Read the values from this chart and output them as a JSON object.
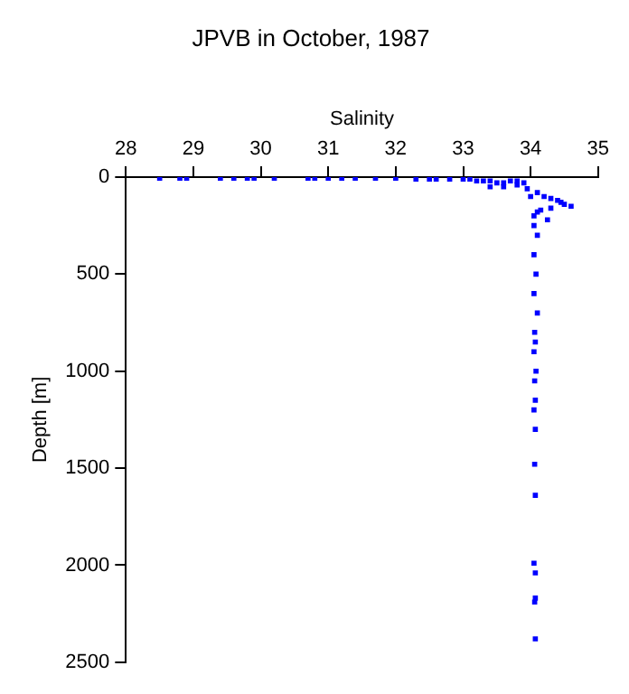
{
  "chart_data": {
    "type": "scatter",
    "title": "JPVB in October, 1987",
    "xlabel": "Salinity",
    "ylabel": "Depth [m]",
    "marker": "square",
    "grid": false,
    "legend": false,
    "xlim": [
      28,
      35
    ],
    "xticks": [
      28,
      29,
      30,
      31,
      32,
      33,
      34,
      35
    ],
    "ylim": [
      2500,
      0
    ],
    "yticks": [
      0,
      500,
      1000,
      1500,
      2000,
      2500
    ],
    "series": [
      {
        "color": "#0000ff",
        "x": [
          28.5,
          28.8,
          28.9,
          29.4,
          29.6,
          29.8,
          29.9,
          30.2,
          30.7,
          30.8,
          31.0,
          31.2,
          31.4,
          31.7,
          32.0,
          32.3,
          32.5,
          32.6,
          32.8,
          33.0,
          33.1,
          33.2,
          33.3,
          33.4,
          33.5,
          33.6,
          33.7,
          33.8,
          33.9,
          33.4,
          33.6,
          33.8,
          33.95,
          34.0,
          34.1,
          34.2,
          34.3,
          34.4,
          34.5,
          34.6,
          34.1,
          34.3,
          34.45,
          34.05,
          34.15,
          34.25,
          34.05,
          34.1,
          34.05,
          34.08,
          34.05,
          34.1,
          34.06,
          34.07,
          34.05,
          34.08,
          34.06,
          34.07,
          34.05,
          34.07,
          34.06,
          34.07,
          34.05,
          34.07,
          34.07,
          34.06,
          34.07
        ],
        "values": [
          5,
          5,
          5,
          5,
          5,
          5,
          5,
          5,
          5,
          5,
          5,
          5,
          5,
          5,
          5,
          10,
          10,
          10,
          10,
          10,
          10,
          20,
          20,
          20,
          30,
          30,
          20,
          20,
          30,
          50,
          50,
          40,
          60,
          100,
          80,
          100,
          110,
          120,
          140,
          150,
          180,
          160,
          130,
          200,
          170,
          220,
          250,
          300,
          400,
          500,
          600,
          700,
          800,
          850,
          900,
          1000,
          1050,
          1150,
          1200,
          1300,
          1480,
          1640,
          1990,
          2040,
          2170,
          2190,
          2380
        ]
      }
    ]
  }
}
